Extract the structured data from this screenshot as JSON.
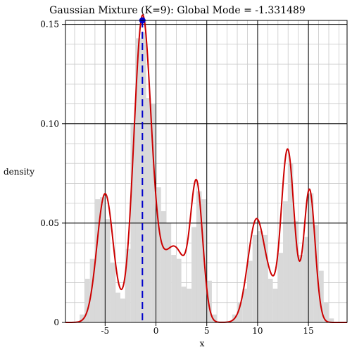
{
  "chart_data": {
    "type": "area",
    "title": "Gaussian Mixture (K=9): Global Mode = -1.331489",
    "xlabel": "x",
    "ylabel": "density",
    "xlim": [
      -8.9,
      18.8
    ],
    "ylim": [
      0,
      0.152
    ],
    "grid": true,
    "x_ticks": [
      -5,
      0,
      5,
      10,
      15
    ],
    "x_tick_labels": [
      "-5",
      "0",
      "5",
      "10",
      "15"
    ],
    "y_ticks": [
      0,
      0.05,
      0.1,
      0.15
    ],
    "y_tick_labels": [
      "0",
      "0.05",
      "0.10",
      "0.15"
    ],
    "mode": {
      "x": -1.331489,
      "y": 0.152
    },
    "colors": {
      "histogram": "#d9d9d9",
      "density_line": "#cc0000",
      "mode_line": "#0000cc",
      "mode_point": "#0000cc",
      "grid_major": "#000000",
      "grid_minor": "#c8c8c8",
      "background": "#ffffff"
    },
    "density_components": [
      {
        "weight": 0.13,
        "mean": -5.0,
        "sd": 0.8
      },
      {
        "weight": 0.324,
        "mean": -1.33,
        "sd": 0.85
      },
      {
        "weight": 0.056,
        "mean": 0.75,
        "sd": 1.0
      },
      {
        "weight": 0.063,
        "mean": 2.2,
        "sd": 0.9
      },
      {
        "weight": 0.102,
        "mean": 4.0,
        "sd": 0.6
      },
      {
        "weight": 0.111,
        "mean": 9.9,
        "sd": 0.85
      },
      {
        "weight": 0.01,
        "mean": 11.3,
        "sd": 0.5
      },
      {
        "weight": 0.142,
        "mean": 12.95,
        "sd": 0.65
      },
      {
        "weight": 0.092,
        "mean": 15.1,
        "sd": 0.55
      }
    ],
    "histogram": {
      "bin_start": -7.5,
      "bin_width": 0.5,
      "values": [
        0.004,
        0.022,
        0.032,
        0.062,
        0.063,
        0.052,
        0.03,
        0.015,
        0.012,
        0.037,
        0.1,
        0.143,
        0.146,
        0.113,
        0.11,
        0.068,
        0.056,
        0.05,
        0.034,
        0.032,
        0.018,
        0.017,
        0.048,
        0.066,
        0.062,
        0.021,
        0.004,
        0.0005,
        0.0005,
        0.0005,
        0.004,
        0.01,
        0.017,
        0.031,
        0.044,
        0.046,
        0.044,
        0.022,
        0.017,
        0.035,
        0.061,
        0.08,
        0.051,
        0.034,
        0.043,
        0.065,
        0.049,
        0.026,
        0.01,
        0.002
      ]
    }
  }
}
